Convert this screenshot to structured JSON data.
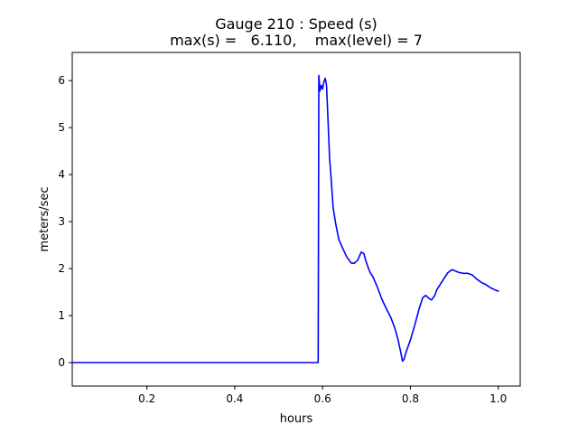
{
  "chart_data": {
    "type": "line",
    "title_lines": [
      "Gauge 210 : Speed (s)",
      "max(s) =   6.110,    max(level) = 7"
    ],
    "xlabel": "hours",
    "ylabel": "meters/sec",
    "xlim": [
      0.03,
      1.05
    ],
    "ylim": [
      -0.5,
      6.6
    ],
    "xticks": [
      0.2,
      0.4,
      0.6,
      0.8,
      1.0
    ],
    "xtick_labels": [
      "0.2",
      "0.4",
      "0.6",
      "0.8",
      "1.0"
    ],
    "yticks": [
      0,
      1,
      2,
      3,
      4,
      5,
      6
    ],
    "ytick_labels": [
      "0",
      "1",
      "2",
      "3",
      "4",
      "5",
      "6"
    ],
    "grid": false,
    "series": [
      {
        "color": "#0000ff",
        "x": [
          0.03,
          0.585,
          0.588,
          0.59,
          0.5915,
          0.594,
          0.597,
          0.6,
          0.603,
          0.606,
          0.609,
          0.612,
          0.616,
          0.62,
          0.624,
          0.63,
          0.637,
          0.645,
          0.655,
          0.665,
          0.672,
          0.68,
          0.688,
          0.694,
          0.7,
          0.708,
          0.715,
          0.725,
          0.735,
          0.745,
          0.755,
          0.765,
          0.772,
          0.778,
          0.782,
          0.786,
          0.79,
          0.8,
          0.81,
          0.82,
          0.828,
          0.835,
          0.842,
          0.848,
          0.855,
          0.86,
          0.867,
          0.875,
          0.885,
          0.895,
          0.902,
          0.91,
          0.92,
          0.93,
          0.94,
          0.948,
          0.955,
          0.962,
          0.97,
          0.978,
          0.985,
          0.992,
          1.0
        ],
        "y": [
          0.0,
          0.0,
          0.0,
          0.0,
          6.11,
          5.78,
          5.9,
          5.82,
          5.98,
          6.05,
          5.9,
          5.25,
          4.35,
          3.85,
          3.3,
          2.95,
          2.62,
          2.45,
          2.25,
          2.12,
          2.11,
          2.18,
          2.35,
          2.32,
          2.12,
          1.92,
          1.82,
          1.6,
          1.35,
          1.15,
          0.97,
          0.72,
          0.48,
          0.22,
          0.03,
          0.08,
          0.22,
          0.48,
          0.8,
          1.15,
          1.38,
          1.43,
          1.37,
          1.33,
          1.42,
          1.55,
          1.65,
          1.77,
          1.91,
          1.98,
          1.95,
          1.92,
          1.9,
          1.9,
          1.87,
          1.8,
          1.75,
          1.7,
          1.67,
          1.62,
          1.58,
          1.55,
          1.52
        ]
      }
    ]
  }
}
